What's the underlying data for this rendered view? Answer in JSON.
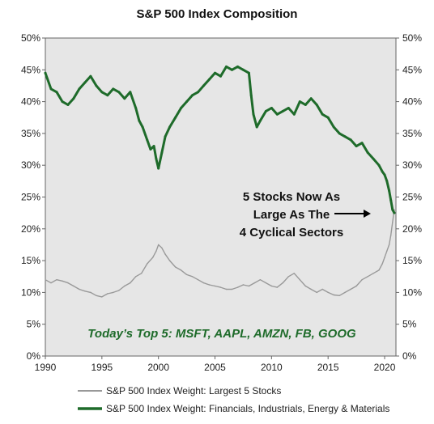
{
  "chart_data": {
    "type": "line",
    "title": "S&P 500 Index Composition",
    "xlim": [
      1990,
      2021
    ],
    "ylim": [
      0,
      50
    ],
    "x_ticks": [
      "1990",
      "1995",
      "2000",
      "2005",
      "2010",
      "2015",
      "2020"
    ],
    "y_ticks": [
      "0%",
      "5%",
      "10%",
      "15%",
      "20%",
      "25%",
      "30%",
      "35%",
      "40%",
      "45%",
      "50%"
    ],
    "grid": false,
    "background_color": "#e6e6e6",
    "legend_position": "bottom",
    "series": [
      {
        "name": "S&P 500 Index Weight: Largest 5 Stocks",
        "color": "#999999",
        "x": [
          1990.0,
          1990.5,
          1991.0,
          1991.5,
          1992.0,
          1992.5,
          1993.0,
          1993.5,
          1994.0,
          1994.5,
          1995.0,
          1995.5,
          1996.0,
          1996.5,
          1997.0,
          1997.5,
          1998.0,
          1998.5,
          1999.0,
          1999.5,
          1999.8,
          2000.0,
          2000.3,
          2000.6,
          2001.0,
          2001.5,
          2002.0,
          2002.5,
          2003.0,
          2003.5,
          2004.0,
          2004.5,
          2005.0,
          2005.5,
          2006.0,
          2006.5,
          2007.0,
          2007.5,
          2008.0,
          2008.5,
          2009.0,
          2009.5,
          2010.0,
          2010.5,
          2011.0,
          2011.5,
          2012.0,
          2012.5,
          2013.0,
          2013.5,
          2014.0,
          2014.5,
          2015.0,
          2015.5,
          2016.0,
          2016.5,
          2017.0,
          2017.5,
          2018.0,
          2018.5,
          2019.0,
          2019.5,
          2019.8,
          2020.0,
          2020.2,
          2020.4,
          2020.55,
          2020.7,
          2020.85
        ],
        "values": [
          12.0,
          11.5,
          12.0,
          11.8,
          11.5,
          11.0,
          10.5,
          10.2,
          10.0,
          9.5,
          9.3,
          9.8,
          10.0,
          10.3,
          11.0,
          11.5,
          12.5,
          13.0,
          14.5,
          15.5,
          16.5,
          17.5,
          17.0,
          16.0,
          15.0,
          14.0,
          13.5,
          12.8,
          12.5,
          12.0,
          11.5,
          11.2,
          11.0,
          10.8,
          10.5,
          10.5,
          10.8,
          11.2,
          11.0,
          11.5,
          12.0,
          11.5,
          11.0,
          10.8,
          11.5,
          12.5,
          13.0,
          12.0,
          11.0,
          10.5,
          10.0,
          10.5,
          10.0,
          9.6,
          9.5,
          10.0,
          10.5,
          11.0,
          12.0,
          12.5,
          13.0,
          13.5,
          14.5,
          15.5,
          16.5,
          17.5,
          19.0,
          21.0,
          23.0
        ]
      },
      {
        "name": "S&P 500 Index Weight: Financials, Industrials, Energy & Materials",
        "color": "#1e6b2a",
        "x": [
          1990.0,
          1990.5,
          1991.0,
          1991.5,
          1992.0,
          1992.5,
          1993.0,
          1993.5,
          1994.0,
          1994.5,
          1995.0,
          1995.5,
          1996.0,
          1996.5,
          1997.0,
          1997.5,
          1998.0,
          1998.3,
          1998.6,
          1999.0,
          1999.3,
          1999.6,
          1999.8,
          2000.0,
          2000.3,
          2000.6,
          2001.0,
          2001.5,
          2002.0,
          2002.5,
          2003.0,
          2003.5,
          2004.0,
          2004.5,
          2005.0,
          2005.5,
          2006.0,
          2006.5,
          2007.0,
          2007.5,
          2008.0,
          2008.2,
          2008.4,
          2008.7,
          2009.0,
          2009.5,
          2010.0,
          2010.5,
          2011.0,
          2011.5,
          2012.0,
          2012.5,
          2013.0,
          2013.5,
          2014.0,
          2014.5,
          2015.0,
          2015.5,
          2016.0,
          2016.5,
          2017.0,
          2017.5,
          2018.0,
          2018.5,
          2019.0,
          2019.5,
          2019.8,
          2020.0,
          2020.2,
          2020.4,
          2020.55,
          2020.7,
          2020.85
        ],
        "values": [
          44.5,
          42.0,
          41.5,
          40.0,
          39.5,
          40.5,
          42.0,
          43.0,
          44.0,
          42.5,
          41.5,
          41.0,
          42.0,
          41.5,
          40.5,
          41.5,
          39.0,
          37.0,
          36.0,
          34.0,
          32.5,
          33.0,
          31.0,
          29.5,
          32.0,
          34.5,
          36.0,
          37.5,
          39.0,
          40.0,
          41.0,
          41.5,
          42.5,
          43.5,
          44.5,
          44.0,
          45.5,
          45.0,
          45.5,
          45.0,
          44.5,
          41.0,
          38.0,
          36.0,
          37.0,
          38.5,
          39.0,
          38.0,
          38.5,
          39.0,
          38.0,
          40.0,
          39.5,
          40.5,
          39.5,
          38.0,
          37.5,
          36.0,
          35.0,
          34.5,
          34.0,
          33.0,
          33.5,
          32.0,
          31.0,
          30.0,
          29.0,
          28.5,
          27.5,
          26.0,
          24.5,
          23.0,
          22.5
        ]
      }
    ],
    "annotations": {
      "callout_lines": [
        "5 Stocks Now As",
        "Large As The",
        "4 Cyclical Sectors"
      ],
      "footer_text": "Today’s Top 5:  MSFT, AAPL, AMZN, FB, GOOG",
      "footer_color": "#1e6b2a"
    }
  }
}
